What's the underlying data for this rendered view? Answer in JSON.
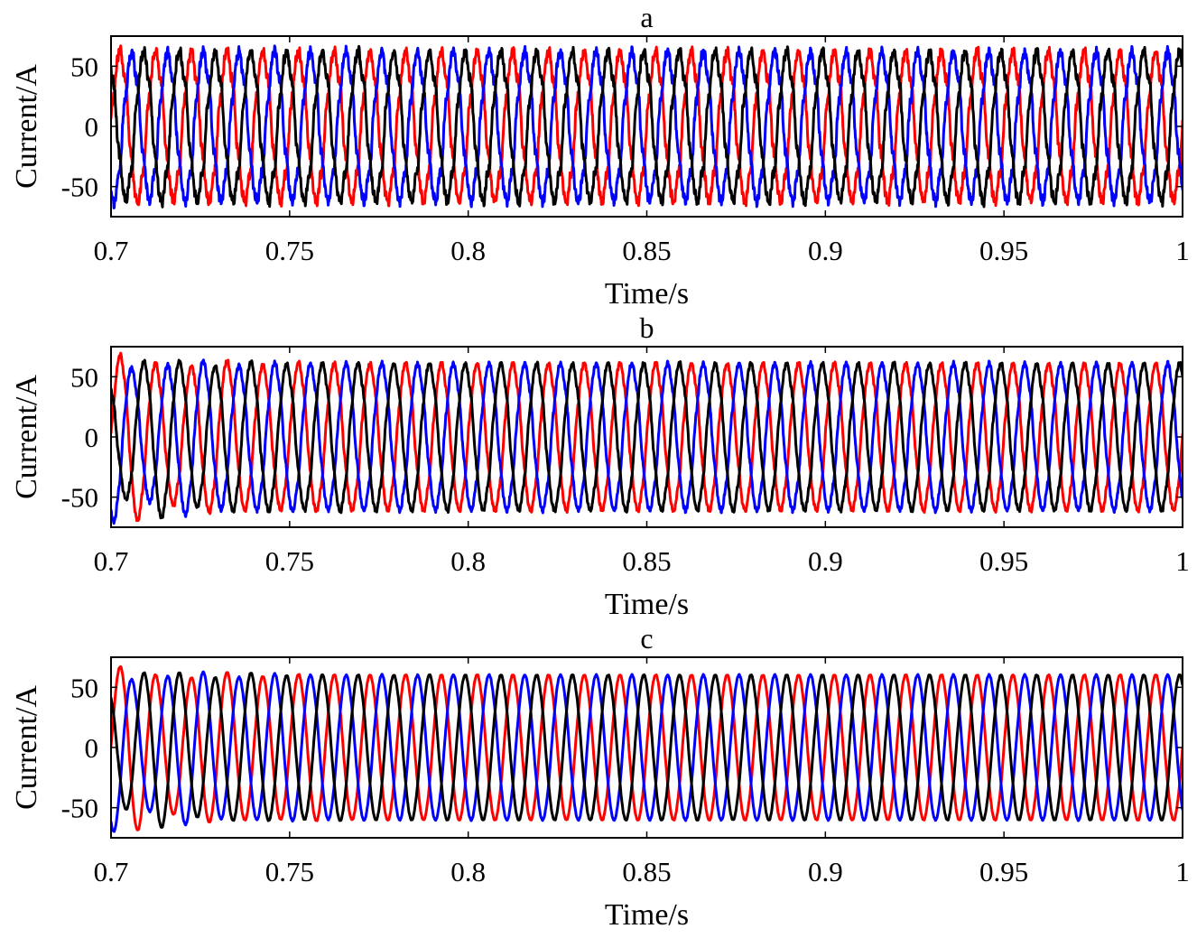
{
  "chart_data": [
    {
      "type": "line",
      "title": "a",
      "xlabel": "Time/s",
      "ylabel": "Current/A",
      "xlim": [
        0.7,
        1.0
      ],
      "ylim": [
        -75,
        75
      ],
      "xticks": [
        0.7,
        0.75,
        0.8,
        0.85,
        0.9,
        0.95,
        1.0
      ],
      "xtick_labels": [
        "0.7",
        "0.75",
        "0.8",
        "0.85",
        "0.9",
        "0.95",
        "1"
      ],
      "yticks": [
        50,
        0,
        -50
      ],
      "ytick_labels": [
        "50",
        "0",
        "-50"
      ],
      "grid": false,
      "waveform": "three-phase AC current, distorted with harmonic ripple",
      "frequency_hz": 100,
      "amplitude": 60,
      "series": [
        {
          "color": "#ff0000",
          "phase_deg": 0,
          "value_at_0.7": 10,
          "peak_max": 75
        },
        {
          "color": "#0000ff",
          "phase_deg": -120,
          "value_at_0.7": -57,
          "peak_min": -72
        },
        {
          "color": "#000000",
          "phase_deg": 120,
          "value_at_0.7": 50,
          "peak_min": -73
        }
      ]
    },
    {
      "type": "line",
      "title": "b",
      "xlabel": "Time/s",
      "ylabel": "Current/A",
      "xlim": [
        0.7,
        1.0
      ],
      "ylim": [
        -75,
        75
      ],
      "xticks": [
        0.7,
        0.75,
        0.8,
        0.85,
        0.9,
        0.95,
        1.0
      ],
      "xtick_labels": [
        "0.7",
        "0.75",
        "0.8",
        "0.85",
        "0.9",
        "0.95",
        "1"
      ],
      "yticks": [
        50,
        0,
        -50
      ],
      "ytick_labels": [
        "50",
        "0",
        "-50"
      ],
      "grid": false,
      "waveform": "three-phase AC current, mild ripple, initial transient",
      "frequency_hz": 100,
      "amplitude": 60,
      "series": [
        {
          "color": "#ff0000",
          "phase_deg": 0,
          "value_at_0.7": 0,
          "peak_min": -73
        },
        {
          "color": "#0000ff",
          "phase_deg": -120,
          "value_at_0.7": -52,
          "peak_max": 75
        },
        {
          "color": "#000000",
          "phase_deg": 120,
          "value_at_0.7": 52,
          "peak_min": -72
        }
      ]
    },
    {
      "type": "line",
      "title": "c",
      "xlabel": "Time/s",
      "ylabel": "Current/A",
      "xlim": [
        0.7,
        1.0
      ],
      "ylim": [
        -75,
        75
      ],
      "xticks": [
        0.7,
        0.75,
        0.8,
        0.85,
        0.9,
        0.95,
        1.0
      ],
      "xtick_labels": [
        "0.7",
        "0.75",
        "0.8",
        "0.85",
        "0.9",
        "0.95",
        "1"
      ],
      "yticks": [
        50,
        0,
        -50
      ],
      "ytick_labels": [
        "50",
        "0",
        "-50"
      ],
      "grid": false,
      "waveform": "three-phase AC current, near-sinusoidal, initial transient",
      "frequency_hz": 100,
      "amplitude": 60,
      "series": [
        {
          "color": "#ff0000",
          "phase_deg": 0,
          "value_at_0.7": 0,
          "peak_min": -73
        },
        {
          "color": "#0000ff",
          "phase_deg": -120,
          "value_at_0.7": -52,
          "peak_max": 75
        },
        {
          "color": "#000000",
          "phase_deg": 120,
          "value_at_0.7": 52,
          "peak_min": -70
        }
      ]
    }
  ]
}
